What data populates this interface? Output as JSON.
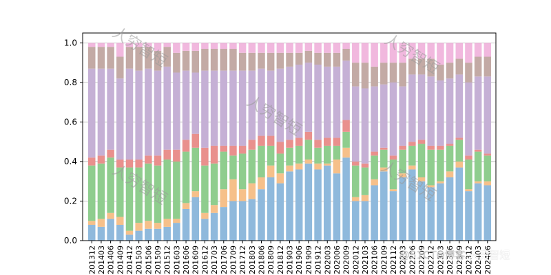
{
  "chart_data": {
    "type": "bar",
    "stacked": true,
    "normalized": true,
    "ylim": [
      0,
      1.05
    ],
    "yticks": [
      0.0,
      0.2,
      0.4,
      0.6,
      0.8,
      1.0
    ],
    "ytick_labels": [
      "0.0",
      "0.2",
      "0.4",
      "0.6",
      "0.8",
      "1.0"
    ],
    "grid": "horizontal",
    "title": "",
    "xlabel": "",
    "ylabel": "",
    "categories": [
      "201312",
      "201403",
      "201406",
      "201409",
      "201412",
      "201503",
      "201506",
      "201509",
      "201512",
      "201603",
      "201606",
      "201609",
      "201612",
      "201703",
      "201706",
      "201709",
      "201712",
      "201803",
      "201806",
      "201809",
      "201812",
      "201903",
      "201906",
      "201909",
      "201912",
      "202003",
      "202006",
      "202009",
      "202012",
      "202103",
      "202106",
      "202109",
      "202112",
      "202203",
      "202206",
      "202209",
      "202212",
      "202303",
      "202306",
      "202309",
      "202312",
      "202403",
      "202406"
    ],
    "series": [
      {
        "color": "#8fb9dc",
        "values": [
          0.08,
          0.07,
          0.11,
          0.08,
          0.03,
          0.05,
          0.06,
          0.06,
          0.07,
          0.09,
          0.16,
          0.22,
          0.11,
          0.14,
          0.17,
          0.2,
          0.2,
          0.21,
          0.26,
          0.32,
          0.29,
          0.35,
          0.36,
          0.39,
          0.36,
          0.38,
          0.34,
          0.42,
          0.2,
          0.2,
          0.28,
          0.35,
          0.25,
          0.32,
          0.36,
          0.3,
          0.27,
          0.29,
          0.32,
          0.37,
          0.25,
          0.29,
          0.28
        ]
      },
      {
        "color": "#f6c08a",
        "values": [
          0.02,
          0.04,
          0.03,
          0.04,
          0.02,
          0.04,
          0.04,
          0.03,
          0.04,
          0.02,
          0.03,
          0.03,
          0.03,
          0.04,
          0.09,
          0.11,
          0.06,
          0.08,
          0.06,
          0.06,
          0.05,
          0.03,
          0.03,
          0.02,
          0.03,
          0.01,
          0.07,
          0.05,
          0.02,
          0.03,
          0.03,
          0.02,
          0.01,
          0.02,
          0.02,
          0.02,
          0.01,
          0.01,
          0.03,
          0.03,
          0.01,
          0.01,
          0.02
        ]
      },
      {
        "color": "#8fcd8e",
        "values": [
          0.28,
          0.28,
          0.28,
          0.25,
          0.32,
          0.28,
          0.29,
          0.29,
          0.3,
          0.29,
          0.26,
          0.22,
          0.24,
          0.21,
          0.19,
          0.12,
          0.18,
          0.17,
          0.16,
          0.1,
          0.1,
          0.09,
          0.09,
          0.1,
          0.08,
          0.09,
          0.07,
          0.08,
          0.16,
          0.14,
          0.12,
          0.09,
          0.15,
          0.12,
          0.1,
          0.17,
          0.18,
          0.16,
          0.13,
          0.11,
          0.15,
          0.15,
          0.13
        ]
      },
      {
        "color": "#e9908d",
        "values": [
          0.04,
          0.04,
          0.04,
          0.04,
          0.04,
          0.04,
          0.04,
          0.05,
          0.05,
          0.06,
          0.06,
          0.07,
          0.09,
          0.09,
          0.03,
          0.05,
          0.04,
          0.05,
          0.05,
          0.05,
          0.06,
          0.04,
          0.04,
          0.04,
          0.04,
          0.04,
          0.04,
          0.06,
          0.02,
          0.02,
          0.02,
          0.01,
          0.02,
          0.02,
          0.02,
          0.02,
          0.02,
          0.02,
          0.01,
          0.01,
          0.02,
          0.01,
          0.01
        ]
      },
      {
        "color": "#c5b0d5",
        "values": [
          0.45,
          0.44,
          0.41,
          0.41,
          0.46,
          0.45,
          0.44,
          0.43,
          0.42,
          0.39,
          0.35,
          0.31,
          0.39,
          0.38,
          0.38,
          0.38,
          0.38,
          0.35,
          0.34,
          0.33,
          0.37,
          0.37,
          0.37,
          0.35,
          0.38,
          0.36,
          0.36,
          0.3,
          0.38,
          0.38,
          0.33,
          0.32,
          0.37,
          0.3,
          0.34,
          0.33,
          0.35,
          0.33,
          0.33,
          0.32,
          0.37,
          0.37,
          0.39
        ]
      },
      {
        "color": "#c3aaa5",
        "values": [
          0.11,
          0.11,
          0.11,
          0.11,
          0.11,
          0.12,
          0.11,
          0.1,
          0.1,
          0.1,
          0.1,
          0.11,
          0.11,
          0.11,
          0.11,
          0.11,
          0.09,
          0.09,
          0.08,
          0.09,
          0.08,
          0.07,
          0.06,
          0.06,
          0.06,
          0.07,
          0.07,
          0.06,
          0.12,
          0.13,
          0.1,
          0.11,
          0.1,
          0.12,
          0.08,
          0.08,
          0.09,
          0.08,
          0.08,
          0.08,
          0.1,
          0.1,
          0.1
        ]
      },
      {
        "color": "#f1b8de",
        "values": [
          0.02,
          0.02,
          0.02,
          0.07,
          0.02,
          0.02,
          0.02,
          0.04,
          0.02,
          0.05,
          0.04,
          0.04,
          0.03,
          0.03,
          0.03,
          0.03,
          0.05,
          0.05,
          0.05,
          0.05,
          0.05,
          0.05,
          0.05,
          0.04,
          0.05,
          0.05,
          0.05,
          0.03,
          0.1,
          0.1,
          0.12,
          0.1,
          0.1,
          0.1,
          0.08,
          0.08,
          0.08,
          0.11,
          0.1,
          0.08,
          0.1,
          0.07,
          0.07
        ]
      }
    ]
  },
  "watermark_text": "人穷智短",
  "footer_text": "@51CTO博客",
  "footer_brand": "人穷智短"
}
